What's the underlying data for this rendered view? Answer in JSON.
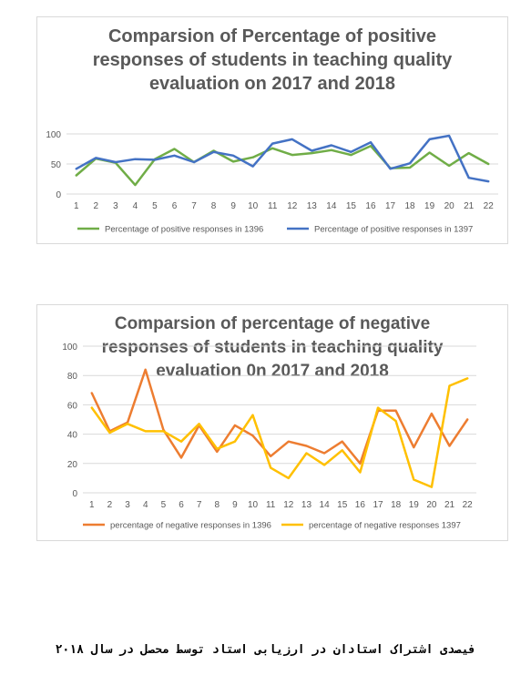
{
  "caption": "فیصدی اشتراک استادان در ارزیابی استاد توسط محصل در سال ۲۰۱۸",
  "chart_data": [
    {
      "type": "line",
      "title_lines": [
        "Comparsion of Percentage of positive",
        "responses  of students in teaching quality",
        "evaluation on 2017 and 2018"
      ],
      "categories": [
        "1",
        "2",
        "3",
        "4",
        "5",
        "6",
        "7",
        "8",
        "9",
        "10",
        "11",
        "12",
        "13",
        "14",
        "15",
        "16",
        "17",
        "18",
        "19",
        "20",
        "21",
        "22"
      ],
      "yticks": [
        "0",
        "50",
        "100"
      ],
      "ylim": [
        0,
        100
      ],
      "grid": true,
      "legend_position": "bottom",
      "series": [
        {
          "name": "Percentage of positive responses in 1396",
          "color": "#70ad47",
          "values": [
            31,
            59,
            52,
            15,
            58,
            75,
            53,
            72,
            54,
            61,
            76,
            65,
            68,
            73,
            65,
            80,
            43,
            44,
            69,
            47,
            68,
            50
          ]
        },
        {
          "name": "Percentage of positive responses in 1397",
          "color": "#4472c4",
          "values": [
            42,
            60,
            53,
            58,
            57,
            64,
            53,
            70,
            64,
            46,
            84,
            91,
            72,
            81,
            70,
            86,
            42,
            51,
            91,
            97,
            27,
            21
          ]
        }
      ]
    },
    {
      "type": "line",
      "title_lines": [
        "Comparsion of percentage of negative",
        "responses of students in teaching quality",
        "evaluation 0n 2017 and 2018"
      ],
      "categories": [
        "1",
        "2",
        "3",
        "4",
        "5",
        "6",
        "7",
        "8",
        "9",
        "10",
        "11",
        "12",
        "13",
        "14",
        "15",
        "16",
        "17",
        "18",
        "19",
        "20",
        "21",
        "22"
      ],
      "yticks": [
        "0",
        "20",
        "40",
        "60",
        "80",
        "100"
      ],
      "ylim": [
        0,
        100
      ],
      "grid": true,
      "legend_position": "bottom",
      "series": [
        {
          "name": "percentage of negative responses in 1396",
          "color": "#ed7d31",
          "values": [
            68,
            42,
            48,
            84,
            43,
            24,
            46,
            28,
            46,
            39,
            25,
            35,
            32,
            27,
            35,
            20,
            56,
            56,
            31,
            54,
            32,
            50
          ]
        },
        {
          "name": "percentage of negative responses 1397",
          "color": "#ffc000",
          "values": [
            58,
            41,
            47,
            42,
            42,
            35,
            47,
            30,
            35,
            53,
            17,
            10,
            27,
            19,
            29,
            14,
            58,
            49,
            9,
            4,
            73,
            78
          ]
        }
      ]
    }
  ]
}
